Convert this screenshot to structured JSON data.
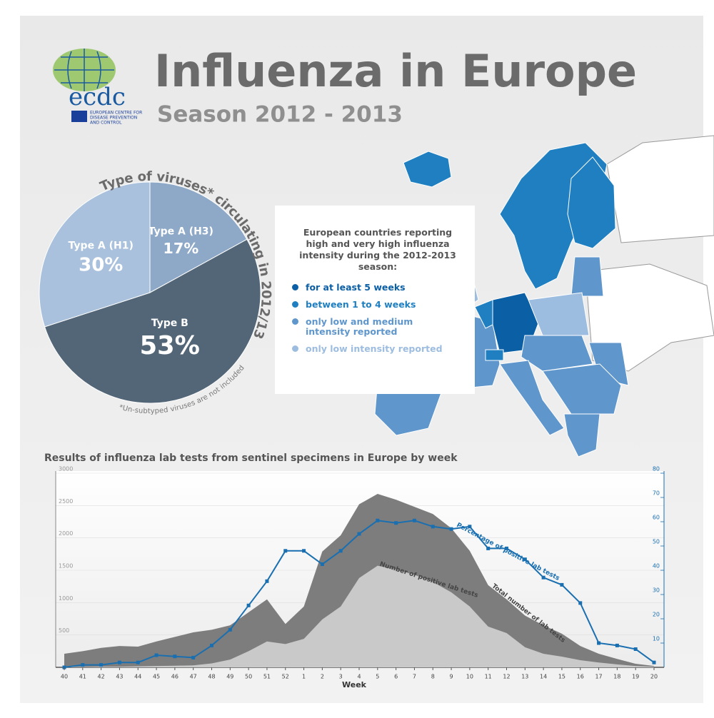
{
  "header": {
    "logo": "ecdc",
    "organization": [
      "EUROPEAN CENTRE FOR",
      "DISEASE PREVENTION",
      "AND CONTROL"
    ],
    "title": "Influenza in Europe",
    "subtitle": "Season 2012 - 2013"
  },
  "map": {
    "title": "European countries reporting high and very high influenza intensity during the 2012-2013 season:",
    "legend": [
      {
        "label": "for at least 5 weeks",
        "color": "#0b5fa5"
      },
      {
        "label": "between 1 to 4 weeks",
        "color": "#1f7fc0"
      },
      {
        "label": "only low and medium intensity reported",
        "color": "#5f96cc"
      },
      {
        "label": "only low intensity reported",
        "color": "#9dbde0"
      }
    ]
  },
  "chart_data": [
    {
      "type": "pie",
      "title": "Type of viruses* circulating in 2012/13",
      "categories": [
        "Type A (H3)",
        "Type B",
        "Type A (H1)"
      ],
      "values": [
        17,
        53,
        30
      ],
      "value_labels": [
        "17%",
        "53%",
        "30%"
      ],
      "colors": [
        "#8ea9c8",
        "#536678",
        "#a9c1dc"
      ],
      "note": "*Un-subtyped viruses are not included"
    },
    {
      "type": "combo",
      "title": "Results of influenza lab tests from sentinel specimens in Europe by week",
      "x_label": "Week",
      "categories": [
        "40",
        "41",
        "42",
        "43",
        "44",
        "45",
        "46",
        "47",
        "48",
        "49",
        "50",
        "51",
        "52",
        "1",
        "2",
        "3",
        "4",
        "5",
        "6",
        "7",
        "8",
        "9",
        "10",
        "11",
        "12",
        "13",
        "14",
        "15",
        "16",
        "17",
        "18",
        "19",
        "20"
      ],
      "series": [
        {
          "name": "Total number of lab tests",
          "type": "area",
          "color": "#7d7d7d",
          "values": [
            210,
            250,
            300,
            330,
            320,
            400,
            470,
            540,
            580,
            650,
            850,
            1050,
            670,
            940,
            1790,
            2040,
            2520,
            2680,
            2590,
            2480,
            2370,
            2150,
            1800,
            1270,
            1050,
            800,
            650,
            520,
            330,
            210,
            130,
            55,
            20
          ]
        },
        {
          "name": "Number of positive lab tests",
          "type": "area",
          "color": "#c9c9c9",
          "values": [
            5,
            5,
            10,
            10,
            15,
            20,
            25,
            30,
            60,
            120,
            250,
            400,
            360,
            440,
            740,
            940,
            1380,
            1570,
            1510,
            1430,
            1320,
            1160,
            940,
            630,
            530,
            310,
            210,
            165,
            110,
            75,
            45,
            20,
            10
          ]
        },
        {
          "name": "Percentage of positive lab tests",
          "type": "line",
          "axis": "y2",
          "color": "#1a6fb0",
          "values": [
            0,
            1,
            1,
            2,
            2,
            5,
            4.5,
            4,
            9,
            15.5,
            25.5,
            35.5,
            48,
            48,
            42.5,
            48,
            55,
            60.5,
            59.5,
            60.5,
            58,
            57,
            58,
            49,
            49,
            44.5,
            37,
            34,
            26.5,
            10,
            9,
            7.5,
            2
          ]
        }
      ],
      "ylim": [
        0,
        3000
      ],
      "yticks": [
        500,
        1000,
        1500,
        2000,
        2500,
        3000
      ],
      "y2lim": [
        0,
        80
      ],
      "y2ticks": [
        10,
        20,
        30,
        40,
        50,
        60,
        70,
        80
      ],
      "grid": true
    }
  ]
}
